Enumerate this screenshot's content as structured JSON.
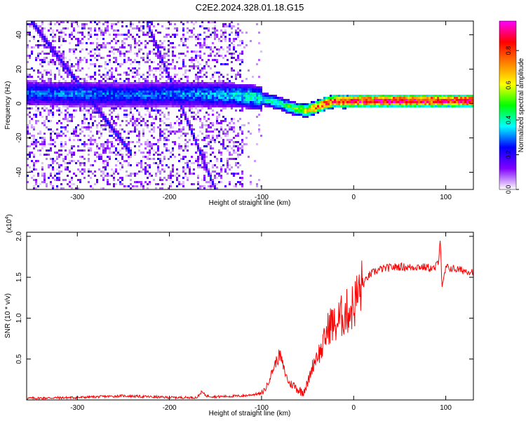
{
  "title": "C2E2.2024.328.01.18.G15",
  "chart_data": [
    {
      "type": "heatmap",
      "title": "",
      "xlabel": "Height of straight line (km)",
      "ylabel": "Frequency (Hz)",
      "xlim": [
        -355,
        130
      ],
      "ylim": [
        -50,
        48
      ],
      "xticks": [
        -300,
        -200,
        -100,
        0,
        100
      ],
      "xtick_labels": [
        "-300",
        "-200",
        "-100",
        "0",
        "100"
      ],
      "yticks": [
        -40,
        -20,
        0,
        20,
        40
      ],
      "ytick_labels": [
        "-40",
        "-20",
        "0",
        "20",
        "40"
      ],
      "colorbar": {
        "label": "Normalized spectral amplitude",
        "range": [
          0,
          0.97
        ],
        "ticks": [
          0.0,
          0.2,
          0.4,
          0.6,
          0.8
        ],
        "tick_labels": [
          "0.0",
          "0.2",
          "0.4",
          "0.6",
          "0.8"
        ],
        "colors": [
          "#ffffff",
          "#8000ff",
          "#0000ff",
          "#00ffff",
          "#00ff00",
          "#ffff00",
          "#ff8000",
          "#ff0000",
          "#ff00ff"
        ]
      },
      "ridge": {
        "name": "",
        "x": [
          -355,
          -300,
          -250,
          -200,
          -150,
          -120,
          -100,
          -80,
          -70,
          -60,
          -50,
          -40,
          -30,
          -20,
          -10,
          0,
          30,
          60,
          90,
          130
        ],
        "freq": [
          6,
          5.5,
          5,
          5.5,
          5,
          4.5,
          3,
          0,
          -2,
          -3.5,
          -4,
          -2,
          0,
          1.5,
          1,
          1.5,
          1.5,
          1.5,
          1.5,
          1.5
        ],
        "amplitude": [
          0.3,
          0.32,
          0.3,
          0.32,
          0.35,
          0.4,
          0.42,
          0.45,
          0.5,
          0.6,
          0.7,
          0.8,
          0.85,
          0.9,
          0.92,
          0.95,
          0.95,
          0.95,
          0.95,
          0.95
        ]
      },
      "diagonal_streaks": [
        {
          "x": [
            -350,
            -240
          ],
          "freq": [
            48,
            -30
          ]
        },
        {
          "x": [
            -225,
            -150
          ],
          "freq": [
            48,
            -50
          ]
        }
      ]
    },
    {
      "type": "line",
      "title": "",
      "xlabel": "Height of straight line (km)",
      "ylabel": "SNR (10 * v/v)",
      "y_multiplier": "(x10^4)",
      "y_multiplier_base": "(x10",
      "y_multiplier_exp": "4",
      "y_multiplier_close": ")",
      "xlim": [
        -355,
        130
      ],
      "ylim": [
        0,
        2.05
      ],
      "xticks": [
        -300,
        -200,
        -100,
        0,
        100
      ],
      "xtick_labels": [
        "-300",
        "-200",
        "-100",
        "0",
        "100"
      ],
      "yticks": [
        0.5,
        1.0,
        1.5,
        2.0
      ],
      "ytick_labels": [
        "0.5",
        "1.0",
        "1.5",
        "2.0"
      ],
      "series": [
        {
          "name": "",
          "color": "#ff0000",
          "x": [
            -355,
            -300,
            -250,
            -200,
            -170,
            -165,
            -160,
            -150,
            -120,
            -100,
            -95,
            -90,
            -85,
            -80,
            -75,
            -70,
            -65,
            -60,
            -55,
            -50,
            -45,
            -40,
            -35,
            -30,
            -25,
            -20,
            -15,
            -10,
            -5,
            0,
            5,
            10,
            15,
            20,
            25,
            30,
            40,
            50,
            60,
            70,
            80,
            88,
            92,
            94,
            96,
            100,
            110,
            120,
            130
          ],
          "y": [
            0.02,
            0.03,
            0.05,
            0.03,
            0.03,
            0.1,
            0.05,
            0.04,
            0.05,
            0.08,
            0.15,
            0.3,
            0.45,
            0.55,
            0.35,
            0.2,
            0.18,
            0.12,
            0.1,
            0.2,
            0.4,
            0.55,
            0.6,
            0.8,
            0.95,
            0.9,
            1.0,
            1.05,
            1.1,
            1.15,
            1.3,
            1.4,
            1.5,
            1.55,
            1.58,
            1.6,
            1.62,
            1.63,
            1.62,
            1.63,
            1.62,
            1.6,
            1.7,
            2.0,
            1.35,
            1.62,
            1.6,
            1.58,
            1.57
          ]
        }
      ]
    }
  ]
}
